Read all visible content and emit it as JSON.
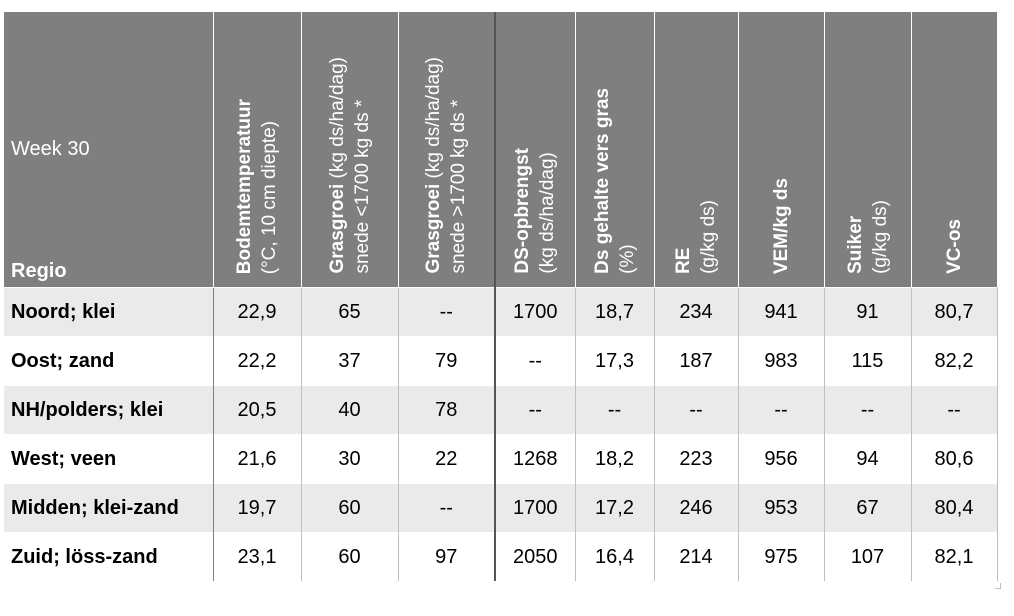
{
  "header": {
    "week": "Week 30",
    "regio": "Regio",
    "columns": [
      {
        "bold": "Bodemtemperatuur",
        "normal": "(°C, 10 cm diepte)"
      },
      {
        "bold": "Grasgroei",
        "normal": " (kg ds/ha/dag)",
        "line2": "snede <1700 kg ds *"
      },
      {
        "bold": "Grasgroei",
        "normal": " (kg ds/ha/dag)",
        "line2": "snede >1700 kg ds *"
      },
      {
        "bold": "DS-opbrengst",
        "normal": "(kg ds/ha/dag)"
      },
      {
        "bold": "Ds gehalte vers gras",
        "normal": "(%)"
      },
      {
        "bold": "RE",
        "normal": "(g/kg ds)"
      },
      {
        "bold": "VEM/kg ds",
        "normal": ""
      },
      {
        "bold": "Suiker",
        "normal": "(g/kg ds)"
      },
      {
        "bold": "VC-os",
        "normal": ""
      }
    ]
  },
  "rows": [
    {
      "region": "Noord; klei",
      "values": [
        "22,9",
        "65",
        "--",
        "1700",
        "18,7",
        "234",
        "941",
        "91",
        "80,7"
      ]
    },
    {
      "region": "Oost; zand",
      "values": [
        "22,2",
        "37",
        "79",
        "--",
        "17,3",
        "187",
        "983",
        "115",
        "82,2"
      ]
    },
    {
      "region": "NH/polders; klei",
      "values": [
        "20,5",
        "40",
        "78",
        "--",
        "--",
        "--",
        "--",
        "--",
        "--"
      ]
    },
    {
      "region": "West; veen",
      "values": [
        "21,6",
        "30",
        "22",
        "1268",
        "18,2",
        "223",
        "956",
        "94",
        "80,6"
      ]
    },
    {
      "region": "Midden; klei-zand",
      "values": [
        "19,7",
        "60",
        "--",
        "1700",
        "17,2",
        "246",
        "953",
        "67",
        "80,4"
      ]
    },
    {
      "region": "Zuid; löss-zand",
      "values": [
        "23,1",
        "60",
        "97",
        "2050",
        "16,4",
        "214",
        "975",
        "107",
        "82,1"
      ]
    }
  ]
}
